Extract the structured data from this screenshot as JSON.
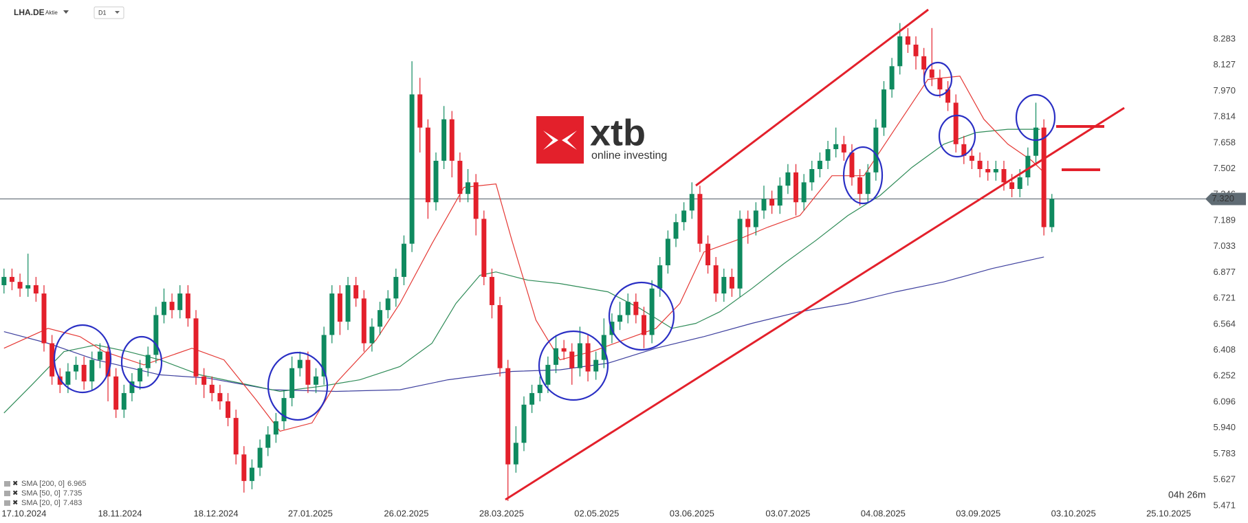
{
  "chart_data": {
    "type": "candlestick",
    "symbol": "LHA.DE",
    "asset_class": "Aktie",
    "timeframe": "D1",
    "logo": {
      "name": "xtb",
      "tagline": "online investing"
    },
    "countdown": "04h 26m",
    "grid": false,
    "up_color": "#0f8a5f",
    "down_color": "#e3202b",
    "xlim": [
      -0.5,
      149.5
    ],
    "ylim": [
      5.433,
      8.519
    ],
    "xticks": [
      {
        "value": 2.5,
        "label": "17.10.2024"
      },
      {
        "value": 14.5,
        "label": "18.11.2024"
      },
      {
        "value": 26.5,
        "label": "18.12.2024"
      },
      {
        "value": 38.3,
        "label": "27.01.2025"
      },
      {
        "value": 50.3,
        "label": "26.02.2025"
      },
      {
        "value": 62.2,
        "label": "28.03.2025"
      },
      {
        "value": 74.1,
        "label": "02.05.2025"
      },
      {
        "value": 86,
        "label": "03.06.2025"
      },
      {
        "value": 98,
        "label": "03.07.2025"
      },
      {
        "value": 109.9,
        "label": "04.08.2025"
      },
      {
        "value": 121.8,
        "label": "03.09.2025"
      },
      {
        "value": 133.7,
        "label": "03.10.2025"
      },
      {
        "value": 145.6,
        "label": "25.10.2025"
      }
    ],
    "yticks": [
      8.283,
      8.127,
      {
        "value": 7.97,
        "label": "7.970"
      },
      7.814,
      7.658,
      7.502,
      7.346,
      7.189,
      7.033,
      6.877,
      6.721,
      6.564,
      6.408,
      6.252,
      6.096,
      {
        "value": 5.94,
        "label": "5.940"
      },
      5.783,
      5.627,
      5.471
    ],
    "last_price": {
      "value": 7.32,
      "label": "7.320"
    },
    "open": [
      6.8,
      6.85,
      6.82,
      6.78,
      6.8,
      6.75,
      6.45,
      6.25,
      6.2,
      6.28,
      6.32,
      6.22,
      6.35,
      6.4,
      6.25,
      6.05,
      6.15,
      6.22,
      6.3,
      6.38,
      6.62,
      6.7,
      6.65,
      6.75,
      6.6,
      6.25,
      6.2,
      6.15,
      6.1,
      6.0,
      5.78,
      5.62,
      5.7,
      5.82,
      5.9,
      5.98,
      6.12,
      6.3,
      6.35,
      6.2,
      6.25,
      6.5,
      6.75,
      6.58,
      6.8,
      6.72,
      6.45,
      6.55,
      6.65,
      6.72,
      6.85,
      7.05,
      7.95,
      7.75,
      7.3,
      7.55,
      7.8,
      7.55,
      7.35,
      7.42,
      7.2,
      6.85,
      6.68,
      6.3,
      5.72,
      5.85,
      6.08,
      6.15,
      6.2,
      6.32,
      6.42,
      6.4,
      6.3,
      6.45,
      6.28,
      6.35,
      6.5,
      6.58,
      6.62,
      6.7,
      6.62,
      6.5,
      6.78,
      6.92,
      7.08,
      7.18,
      7.25,
      7.35,
      7.05,
      6.92,
      6.75,
      6.85,
      6.78,
      7.2,
      7.15,
      7.25,
      7.32,
      7.28,
      7.4,
      7.48,
      7.3,
      7.42,
      7.5,
      7.55,
      7.62,
      7.65,
      7.6,
      7.45,
      7.35,
      7.48,
      7.75,
      7.98,
      8.12,
      8.3,
      8.25,
      8.18,
      8.1,
      8.05,
      7.98,
      7.9,
      7.65,
      7.58,
      7.55,
      7.5,
      7.48,
      7.5,
      7.42,
      7.38,
      7.45,
      7.58,
      7.75,
      7.15
    ],
    "high": [
      6.9,
      6.9,
      6.87,
      6.99,
      6.85,
      6.8,
      6.5,
      6.3,
      6.33,
      6.37,
      6.37,
      6.4,
      6.45,
      6.45,
      6.3,
      6.2,
      6.27,
      6.35,
      6.43,
      6.67,
      6.78,
      6.75,
      6.8,
      6.8,
      6.65,
      6.3,
      6.25,
      6.2,
      6.15,
      6.05,
      5.83,
      5.75,
      5.87,
      5.95,
      6.03,
      6.17,
      6.37,
      6.4,
      6.4,
      6.3,
      6.55,
      6.8,
      6.8,
      6.85,
      6.85,
      6.77,
      6.6,
      6.7,
      6.77,
      6.9,
      7.1,
      8.15,
      8.05,
      7.8,
      7.6,
      7.88,
      7.85,
      7.6,
      7.5,
      7.47,
      7.25,
      6.9,
      6.73,
      6.35,
      5.95,
      6.13,
      6.2,
      6.25,
      6.37,
      6.5,
      6.47,
      6.45,
      6.55,
      6.5,
      6.4,
      6.6,
      6.63,
      6.7,
      6.75,
      6.75,
      6.67,
      6.83,
      6.97,
      7.13,
      7.23,
      7.3,
      7.42,
      7.4,
      7.1,
      6.97,
      6.9,
      6.9,
      7.25,
      7.25,
      7.3,
      7.4,
      7.37,
      7.45,
      7.53,
      7.53,
      7.47,
      7.55,
      7.6,
      7.67,
      7.75,
      7.7,
      7.65,
      7.5,
      7.53,
      7.8,
      8.03,
      8.17,
      8.38,
      8.35,
      8.3,
      8.23,
      8.35,
      8.1,
      8.03,
      7.95,
      7.7,
      7.63,
      7.6,
      7.55,
      7.55,
      7.55,
      7.47,
      7.5,
      7.63,
      7.9,
      7.8,
      7.35
    ],
    "low": [
      6.75,
      6.77,
      6.73,
      6.73,
      6.7,
      6.4,
      6.2,
      6.15,
      6.15,
      6.23,
      6.17,
      6.17,
      6.3,
      6.1,
      6.0,
      6.0,
      6.1,
      6.17,
      6.25,
      6.33,
      6.57,
      6.6,
      6.6,
      6.55,
      6.2,
      6.12,
      6.1,
      6.05,
      5.95,
      5.72,
      5.55,
      5.57,
      5.65,
      5.77,
      5.85,
      5.93,
      6.07,
      6.25,
      6.15,
      6.15,
      6.2,
      6.45,
      6.5,
      6.53,
      6.67,
      6.4,
      6.4,
      6.5,
      6.6,
      6.67,
      6.8,
      7.0,
      7.6,
      7.2,
      7.25,
      7.5,
      7.45,
      7.3,
      7.3,
      7.1,
      6.8,
      6.6,
      6.25,
      5.5,
      5.67,
      5.8,
      6.03,
      6.1,
      6.15,
      6.27,
      6.35,
      6.2,
      6.25,
      6.22,
      6.23,
      6.3,
      6.45,
      6.53,
      6.57,
      6.57,
      6.42,
      6.45,
      6.73,
      6.87,
      7.03,
      7.13,
      7.2,
      7.0,
      6.87,
      6.7,
      6.7,
      6.73,
      6.73,
      7.05,
      7.1,
      7.2,
      7.23,
      7.23,
      7.35,
      7.22,
      7.25,
      7.37,
      7.45,
      7.5,
      7.57,
      7.55,
      7.4,
      7.28,
      7.3,
      7.43,
      7.7,
      7.93,
      8.07,
      8.2,
      8.1,
      8.05,
      8.0,
      7.93,
      7.85,
      7.6,
      7.53,
      7.5,
      7.45,
      7.43,
      7.43,
      7.37,
      7.33,
      7.33,
      7.4,
      7.53,
      7.1,
      7.12
    ],
    "close": [
      6.85,
      6.82,
      6.78,
      6.8,
      6.75,
      6.45,
      6.25,
      6.2,
      6.28,
      6.32,
      6.22,
      6.35,
      6.4,
      6.25,
      6.05,
      6.15,
      6.22,
      6.3,
      6.38,
      6.62,
      6.7,
      6.65,
      6.75,
      6.6,
      6.25,
      6.2,
      6.15,
      6.1,
      6.0,
      5.78,
      5.62,
      5.7,
      5.82,
      5.9,
      5.98,
      6.12,
      6.3,
      6.35,
      6.2,
      6.25,
      6.5,
      6.75,
      6.58,
      6.8,
      6.72,
      6.45,
      6.55,
      6.65,
      6.72,
      6.85,
      7.05,
      7.95,
      7.75,
      7.3,
      7.55,
      7.8,
      7.55,
      7.35,
      7.42,
      7.2,
      6.85,
      6.68,
      6.3,
      5.72,
      5.85,
      6.08,
      6.15,
      6.2,
      6.32,
      6.42,
      6.4,
      6.3,
      6.45,
      6.28,
      6.35,
      6.5,
      6.58,
      6.62,
      6.7,
      6.62,
      6.5,
      6.78,
      6.92,
      7.08,
      7.18,
      7.25,
      7.35,
      7.05,
      6.92,
      6.75,
      6.85,
      6.78,
      7.2,
      7.15,
      7.25,
      7.32,
      7.28,
      7.4,
      7.48,
      7.3,
      7.42,
      7.5,
      7.55,
      7.62,
      7.65,
      7.6,
      7.45,
      7.35,
      7.48,
      7.75,
      7.98,
      8.12,
      8.3,
      8.25,
      8.18,
      8.1,
      8.05,
      7.98,
      7.9,
      7.65,
      7.58,
      7.55,
      7.5,
      7.48,
      7.5,
      7.42,
      7.38,
      7.45,
      7.58,
      7.75,
      7.15,
      7.32
    ],
    "series": [
      {
        "name": "SMA [200, 0]",
        "last_value": 6.965,
        "color": "#3d3f9e",
        "x": [
          0,
          5.5,
          11.5,
          19.5,
          25.5,
          33.5,
          41.5,
          49.5,
          55.5,
          63.5,
          69.5,
          75.5,
          81.5,
          87.5,
          93.5,
          99.5,
          105.5,
          111.5,
          117.5,
          123.5,
          130
        ],
        "values": [
          6.52,
          6.45,
          6.35,
          6.26,
          6.24,
          6.17,
          6.16,
          6.17,
          6.23,
          6.28,
          6.29,
          6.33,
          6.42,
          6.49,
          6.57,
          6.64,
          6.69,
          6.76,
          6.82,
          6.9,
          6.97
        ]
      },
      {
        "name": "SMA [50, 0]",
        "last_value": 7.735,
        "color": "#2e8b57",
        "x": [
          0,
          3.5,
          7.5,
          11.5,
          15.5,
          19.5,
          24.5,
          29.5,
          34.5,
          39.5,
          44.5,
          49.5,
          53.5,
          56.5,
          59.5,
          61.5,
          65.5,
          69.5,
          75.5,
          79.5,
          83.5,
          86.5,
          89.5,
          93.5,
          97.5,
          101.5,
          105.5,
          109.5,
          113.5,
          117.5,
          121.5,
          125.5,
          129.5
        ],
        "values": [
          6.03,
          6.2,
          6.4,
          6.44,
          6.4,
          6.35,
          6.26,
          6.21,
          6.16,
          6.19,
          6.23,
          6.31,
          6.45,
          6.69,
          6.86,
          6.88,
          6.83,
          6.81,
          6.76,
          6.66,
          6.54,
          6.57,
          6.64,
          6.78,
          6.93,
          7.07,
          7.22,
          7.34,
          7.51,
          7.65,
          7.72,
          7.74,
          7.74
        ]
      },
      {
        "name": "SMA [20, 0]",
        "last_value": 7.483,
        "color": "#e53935",
        "x": [
          0,
          5.5,
          9.5,
          12.5,
          17.5,
          23.5,
          27.5,
          31.5,
          34.5,
          38.5,
          41.5,
          46.5,
          49.5,
          53.5,
          57.5,
          61.5,
          63.5,
          66.5,
          69.5,
          73.5,
          77.5,
          81.5,
          84.5,
          87.5,
          91.5,
          95.5,
          99.5,
          103.5,
          107.5,
          111.5,
          115.5,
          119.5,
          122.5,
          125.5,
          128.5,
          130
        ],
        "values": [
          6.42,
          6.54,
          6.49,
          6.4,
          6.32,
          6.42,
          6.35,
          6.11,
          5.92,
          5.97,
          6.21,
          6.47,
          6.69,
          7.05,
          7.39,
          7.41,
          7.07,
          6.59,
          6.35,
          6.4,
          6.47,
          6.54,
          6.69,
          7.0,
          7.07,
          7.15,
          7.22,
          7.46,
          7.46,
          7.75,
          8.04,
          8.06,
          7.8,
          7.65,
          7.55,
          7.48
        ]
      }
    ]
  }
}
